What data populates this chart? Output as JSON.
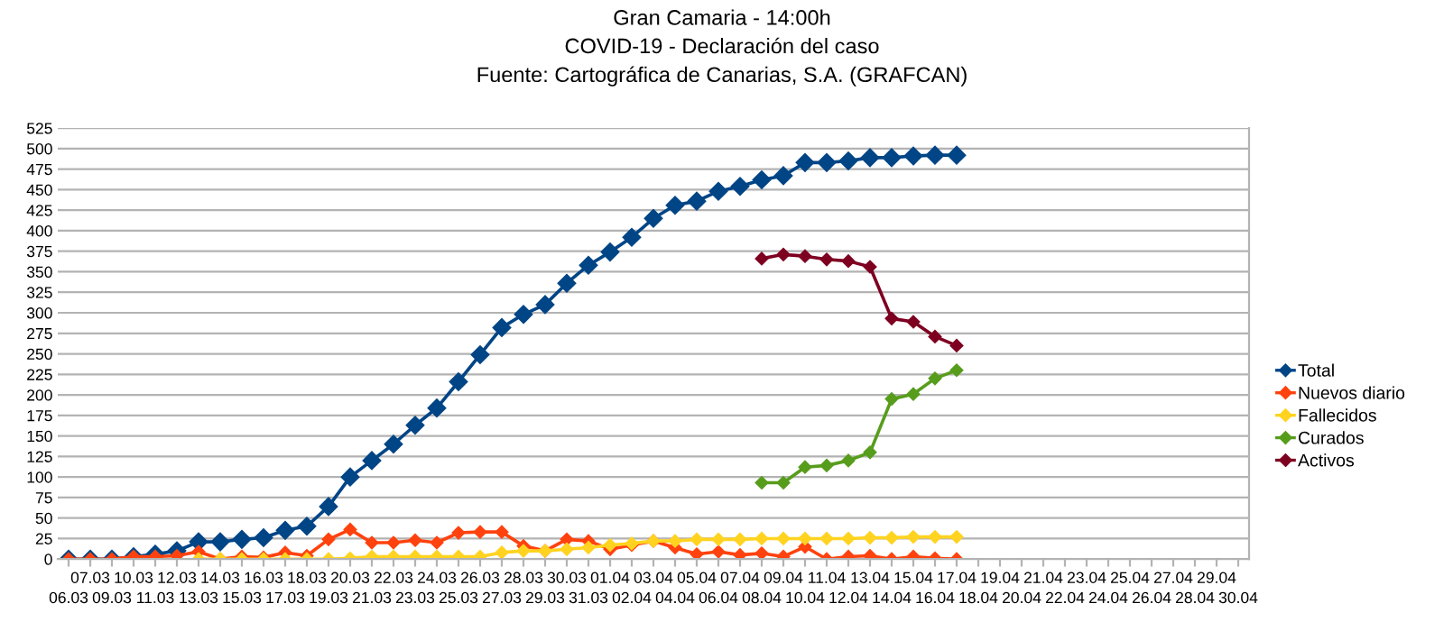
{
  "chart_data": {
    "type": "line",
    "title": "Gran Camaria - 14:00h",
    "subtitle": "COVID-19 - Declaración del caso",
    "annotations": [
      "Fuente: Cartográfica de Canarias, S.A. (GRAFCAN)"
    ],
    "categories": [
      "06.03",
      "07.03",
      "09.03",
      "10.03",
      "11.03",
      "12.03",
      "13.03",
      "14.03",
      "15.03",
      "16.03",
      "17.03",
      "18.03",
      "19.03",
      "20.03",
      "21.03",
      "22.03",
      "23.03",
      "24.03",
      "25.03",
      "26.03",
      "27.03",
      "28.03",
      "29.03",
      "30.03",
      "31.03",
      "01.04",
      "02.04",
      "03.04",
      "04.04",
      "05.04",
      "06.04",
      "07.04",
      "08.04",
      "09.04",
      "10.04",
      "11.04",
      "12.04",
      "13.04",
      "14.04",
      "15.04",
      "16.04",
      "17.04",
      "18.04",
      "19.04",
      "20.04",
      "21.04",
      "22.04",
      "23.04",
      "24.04",
      "25.04",
      "26.04",
      "27.04",
      "28.04",
      "29.04",
      "30.04"
    ],
    "series": [
      {
        "name": "Total",
        "color": "#004586",
        "values": [
          0,
          0,
          0,
          3,
          6,
          10,
          21,
          21,
          24,
          26,
          35,
          40,
          64,
          100,
          120,
          140,
          163,
          184,
          216,
          249,
          282,
          298,
          310,
          336,
          358,
          374,
          392,
          415,
          431,
          436,
          448,
          454,
          462,
          467,
          483,
          483,
          485,
          489,
          489,
          491,
          492,
          492,
          null,
          null,
          null,
          null,
          null,
          null,
          null,
          null,
          null,
          null,
          null,
          null,
          null
        ]
      },
      {
        "name": "Nuevos diario",
        "color": "#ff420e",
        "values": [
          0,
          0,
          0,
          3,
          3,
          4,
          9,
          0,
          3,
          2,
          8,
          4,
          24,
          36,
          20,
          20,
          23,
          20,
          32,
          33,
          33,
          16,
          10,
          24,
          22,
          12,
          17,
          22,
          14,
          6,
          9,
          5,
          7,
          3,
          15,
          0,
          3,
          4,
          0,
          3,
          1,
          0,
          null,
          null,
          null,
          null,
          null,
          null,
          null,
          null,
          null,
          null,
          null,
          null,
          null
        ]
      },
      {
        "name": "Fallecidos",
        "color": "#ffd320",
        "values": [
          null,
          null,
          null,
          null,
          null,
          null,
          0,
          0,
          0,
          0,
          0,
          0,
          0,
          1,
          3,
          3,
          3,
          3,
          3,
          3,
          8,
          10,
          10,
          12,
          14,
          17,
          19,
          22,
          22,
          24,
          24,
          24,
          25,
          25,
          25,
          25,
          25,
          26,
          26,
          27,
          27,
          27,
          null,
          null,
          null,
          null,
          null,
          null,
          null,
          null,
          null,
          null,
          null,
          null,
          null
        ]
      },
      {
        "name": "Curados",
        "color": "#579d1c",
        "values": [
          null,
          null,
          null,
          null,
          null,
          null,
          null,
          null,
          null,
          null,
          null,
          null,
          null,
          null,
          null,
          null,
          null,
          null,
          null,
          null,
          null,
          null,
          null,
          null,
          null,
          null,
          null,
          null,
          null,
          null,
          null,
          null,
          93,
          93,
          112,
          114,
          120,
          130,
          195,
          201,
          220,
          230,
          null,
          null,
          null,
          null,
          null,
          null,
          null,
          null,
          null,
          null,
          null,
          null,
          null
        ]
      },
      {
        "name": "Activos",
        "color": "#7e0021",
        "values": [
          null,
          null,
          null,
          null,
          null,
          null,
          null,
          null,
          null,
          null,
          null,
          null,
          null,
          null,
          null,
          null,
          null,
          null,
          null,
          null,
          null,
          null,
          null,
          null,
          null,
          null,
          null,
          null,
          null,
          null,
          null,
          null,
          366,
          371,
          369,
          365,
          363,
          356,
          293,
          289,
          271,
          260,
          null,
          null,
          null,
          null,
          null,
          null,
          null,
          null,
          null,
          null,
          null,
          null,
          null
        ]
      }
    ],
    "ylim": [
      0,
      525
    ],
    "yticks": [
      0,
      25,
      50,
      75,
      100,
      125,
      150,
      175,
      200,
      225,
      250,
      275,
      300,
      325,
      350,
      375,
      400,
      425,
      450,
      475,
      500,
      525
    ],
    "grid": "y",
    "legend": "right",
    "marker": "diamond",
    "line_style": "solid"
  }
}
